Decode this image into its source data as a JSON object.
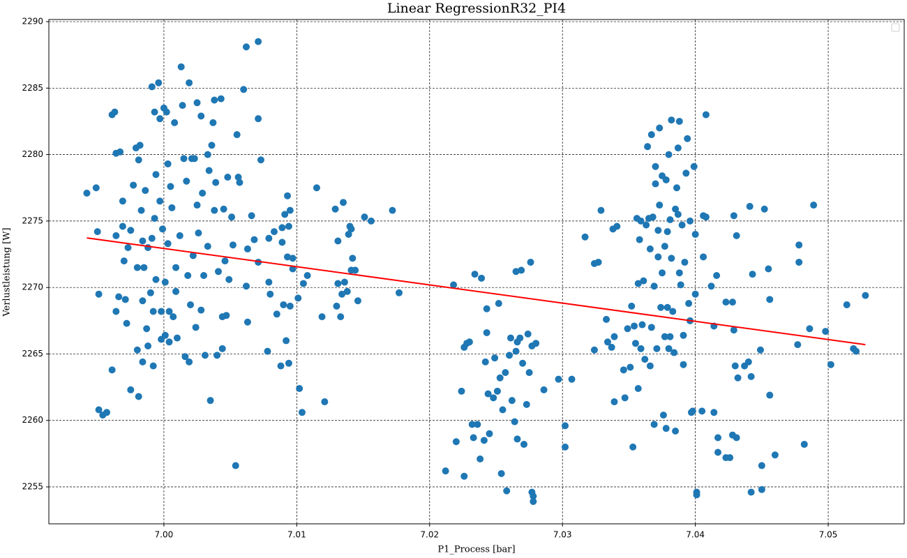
{
  "chart_data": {
    "type": "scatter",
    "title": "Linear RegressionR32_PI4",
    "x_label": "P1_Process [bar]",
    "y_label": "Verlustleistung [W]",
    "xlim": [
      6.99134,
      7.05572
    ],
    "ylim": [
      2252.22,
      2290.16
    ],
    "xticks": [
      {
        "value": 7.0,
        "label": "7.00"
      },
      7.01,
      7.02,
      7.03,
      7.04,
      7.05
    ],
    "yticks": [
      2255,
      2260,
      2265,
      2270,
      2275,
      2280,
      2285,
      2290
    ],
    "grid": true,
    "legend": "upper right",
    "series": [
      {
        "type": "scatter",
        "color": "#1f77b4",
        "x": [
          6.9942,
          6.9949,
          6.995,
          6.9951,
          6.9951,
          6.9954,
          6.9957,
          6.9961,
          6.9961,
          6.9963,
          6.9964,
          6.9967,
          6.9964,
          6.9964,
          6.9966,
          6.9969,
          6.9969,
          6.997,
          6.9971,
          6.9972,
          6.9973,
          6.9975,
          6.9975,
          6.9977,
          6.9979,
          6.998,
          6.998,
          6.9981,
          6.9981,
          6.9982,
          6.9983,
          6.9984,
          6.9984,
          6.9984,
          6.9985,
          6.9986,
          6.9987,
          6.9988,
          6.9988,
          6.999,
          6.9991,
          6.9991,
          6.9992,
          6.9992,
          6.9993,
          6.9993,
          6.9994,
          6.9994,
          6.9996,
          6.9997,
          6.9997,
          6.9998,
          6.9998,
          6.9999,
          7.0,
          7.0001,
          7.0001,
          7.0002,
          7.0003,
          7.0003,
          7.0004,
          7.0004,
          7.0005,
          7.0006,
          7.0007,
          7.0008,
          7.0009,
          7.0009,
          7.001,
          7.0012,
          7.0013,
          7.0014,
          7.0015,
          7.0016,
          7.0017,
          7.0018,
          7.0019,
          7.0019,
          7.002,
          7.0021,
          7.0022,
          7.0023,
          7.0024,
          7.0025,
          7.0025,
          7.0026,
          7.0028,
          7.0028,
          7.0029,
          7.003,
          7.0031,
          7.0033,
          7.0033,
          7.0034,
          7.0035,
          7.0036,
          7.0037,
          7.0038,
          7.0038,
          7.0039,
          7.004,
          7.0041,
          7.0043,
          7.0044,
          7.0044,
          7.0045,
          7.0046,
          7.0047,
          7.0048,
          7.0049,
          7.0051,
          7.0052,
          7.0054,
          7.0055,
          7.0056,
          7.0057,
          7.006,
          7.0062,
          7.0062,
          7.0063,
          7.0063,
          7.0066,
          7.0068,
          7.0071,
          7.0071,
          7.0071,
          7.0073,
          7.0078,
          7.0079,
          7.0079,
          7.008,
          7.0083,
          7.0085,
          7.0088,
          7.0089,
          7.0089,
          7.009,
          7.0091,
          7.0092,
          7.0093,
          7.0093,
          7.0094,
          7.0094,
          7.0095,
          7.0095,
          7.0097,
          7.0097,
          7.0101,
          7.0102,
          7.0104,
          7.0105,
          7.0108,
          7.0115,
          7.0119,
          7.0121,
          7.0129,
          7.013,
          7.0131,
          7.0131,
          7.0133,
          7.0134,
          7.0135,
          7.0136,
          7.0138,
          7.0139,
          7.014,
          7.0141,
          7.0141,
          7.0142,
          7.0144,
          7.0146,
          7.0151,
          7.0156,
          7.0172,
          7.0177,
          7.0212,
          7.0218,
          7.022,
          7.0224,
          7.0226,
          7.0226,
          7.0228,
          7.023,
          7.0232,
          7.0233,
          7.0234,
          7.0236,
          7.0238,
          7.0239,
          7.0241,
          7.0242,
          7.0243,
          7.0243,
          7.0244,
          7.0245,
          7.0248,
          7.0249,
          7.0251,
          7.0252,
          7.0253,
          7.0254,
          7.0255,
          7.0257,
          7.0258,
          7.026,
          7.0261,
          7.0262,
          7.0264,
          7.0265,
          7.0265,
          7.0266,
          7.0266,
          7.0268,
          7.0269,
          7.027,
          7.0271,
          7.0273,
          7.0274,
          7.0275,
          7.0276,
          7.0277,
          7.0277,
          7.0278,
          7.0278,
          7.028,
          7.0286,
          7.0297,
          7.0302,
          7.0302,
          7.0307,
          7.0317,
          7.0324,
          7.0324,
          7.0327,
          7.0329,
          7.0333,
          7.0334,
          7.0337,
          7.0338,
          7.0339,
          7.0339,
          7.0341,
          7.0346,
          7.0347,
          7.0349,
          7.0351,
          7.0352,
          7.0353,
          7.0354,
          7.0355,
          7.0356,
          7.0357,
          7.0357,
          7.0358,
          7.0359,
          7.0359,
          7.036,
          7.0361,
          7.0362,
          7.0363,
          7.0364,
          7.0365,
          7.0366,
          7.0366,
          7.0367,
          7.0367,
          7.0368,
          7.0369,
          7.0369,
          7.037,
          7.037,
          7.0371,
          7.0372,
          7.0372,
          7.0373,
          7.0373,
          7.0374,
          7.0375,
          7.0375,
          7.0376,
          7.0377,
          7.0377,
          7.0378,
          7.0378,
          7.0379,
          7.0379,
          7.038,
          7.038,
          7.0381,
          7.0381,
          7.0382,
          7.0382,
          7.0383,
          7.0384,
          7.0385,
          7.0385,
          7.0386,
          7.0387,
          7.0387,
          7.0388,
          7.0388,
          7.0389,
          7.039,
          7.0391,
          7.0391,
          7.0392,
          7.0393,
          7.0394,
          7.0395,
          7.0396,
          7.0396,
          7.0397,
          7.0398,
          7.0399,
          7.04,
          7.04,
          7.0401,
          7.0401,
          7.0405,
          7.0406,
          7.0406,
          7.0408,
          7.0408,
          7.0412,
          7.0414,
          7.0414,
          7.0416,
          7.0417,
          7.0417,
          7.0423,
          7.0423,
          7.0426,
          7.0428,
          7.0428,
          7.0429,
          7.0429,
          7.043,
          7.0431,
          7.0431,
          7.0432,
          7.0437,
          7.044,
          7.0441,
          7.0442,
          7.0442,
          7.0443,
          7.0449,
          7.045,
          7.045,
          7.0452,
          7.0455,
          7.0456,
          7.0456,
          7.046,
          7.0482,
          7.0477,
          7.0478,
          7.0478,
          7.0486,
          7.0489,
          7.0498,
          7.0502,
          7.0514,
          7.0519,
          7.0521,
          7.0528
        ],
        "values": [
          2277.1,
          2277.5,
          2274.2,
          2269.5,
          2260.8,
          2260.4,
          2260.6,
          2263.8,
          2283.0,
          2283.2,
          2280.1,
          2280.2,
          2273.9,
          2268.2,
          2269.3,
          2276.5,
          2274.6,
          2272.0,
          2269.1,
          2267.3,
          2273.0,
          2262.3,
          2274.3,
          2277.7,
          2280.5,
          2271.5,
          2265.3,
          2279.6,
          2261.8,
          2280.7,
          2275.8,
          2273.5,
          2264.4,
          2269.0,
          2271.5,
          2277.3,
          2266.9,
          2273.0,
          2265.6,
          2269.6,
          2285.1,
          2273.7,
          2268.2,
          2264.1,
          2283.2,
          2275.2,
          2278.5,
          2270.6,
          2285.4,
          2282.7,
          2276.5,
          2266.1,
          2268.2,
          2274.4,
          2283.5,
          2266.4,
          2270.4,
          2283.2,
          2279.3,
          2273.3,
          2265.9,
          2268.2,
          2277.6,
          2276.0,
          2267.8,
          2282.4,
          2271.5,
          2269.7,
          2266.2,
          2273.9,
          2286.6,
          2283.7,
          2279.7,
          2264.8,
          2278.0,
          2270.9,
          2285.4,
          2264.4,
          2268.7,
          2279.7,
          2272.4,
          2279.7,
          2267.0,
          2283.9,
          2276.2,
          2274.1,
          2268.3,
          2282.9,
          2277.1,
          2270.9,
          2264.9,
          2280.0,
          2273.1,
          2278.8,
          2261.5,
          2280.7,
          2282.4,
          2275.8,
          2284.1,
          2277.9,
          2264.9,
          2271.2,
          2284.2,
          2267.8,
          2265.4,
          2275.9,
          2272.0,
          2267.9,
          2278.3,
          2270.6,
          2275.3,
          2273.2,
          2256.6,
          2281.5,
          2278.3,
          2277.9,
          2284.9,
          2288.1,
          2270.1,
          2267.4,
          2272.9,
          2275.4,
          2273.6,
          2282.7,
          2288.5,
          2271.9,
          2279.6,
          2265.2,
          2270.4,
          2273.7,
          2269.5,
          2274.2,
          2268.0,
          2264.1,
          2274.5,
          2273.4,
          2268.7,
          2275.5,
          2266.0,
          2276.9,
          2272.3,
          2274.6,
          2264.3,
          2268.6,
          2275.8,
          2272.2,
          2271.4,
          2269.2,
          2262.4,
          2260.6,
          2270.3,
          2270.9,
          2277.5,
          2267.8,
          2261.4,
          2275.9,
          2268.6,
          2273.5,
          2270.3,
          2267.8,
          2269.5,
          2276.4,
          2270.4,
          2269.7,
          2274.0,
          2274.6,
          2274.4,
          2271.3,
          2272.2,
          2271.3,
          2269.0,
          2275.3,
          2275.0,
          2275.8,
          2269.6,
          2256.2,
          2270.2,
          2258.4,
          2262.2,
          2265.5,
          2255.8,
          2265.8,
          2265.9,
          2259.7,
          2258.7,
          2271.0,
          2259.7,
          2257.1,
          2270.7,
          2258.5,
          2264.4,
          2266.6,
          2268.4,
          2262.0,
          2259.0,
          2261.7,
          2264.7,
          2262.2,
          2268.8,
          2263.2,
          2256.0,
          2260.8,
          2263.6,
          2254.7,
          2264.9,
          2266.2,
          2261.5,
          2259.9,
          2271.2,
          2265.2,
          2258.6,
          2265.9,
          2266.2,
          2271.3,
          2264.3,
          2258.2,
          2261.2,
          2266.5,
          2263.6,
          2271.9,
          2254.6,
          2265.6,
          2254.3,
          2253.9,
          2265.8,
          2262.3,
          2263.1,
          2259.6,
          2258.0,
          2263.1,
          2273.8,
          2265.3,
          2271.8,
          2271.9,
          2275.8,
          2267.6,
          2265.9,
          2265.5,
          2274.4,
          2261.4,
          2266.3,
          2274.6,
          2263.8,
          2261.7,
          2266.9,
          2264.0,
          2268.6,
          2258.0,
          2267.1,
          2265.8,
          2275.2,
          2270.3,
          2262.4,
          2273.6,
          2265.4,
          2275.0,
          2267.2,
          2270.5,
          2264.6,
          2274.7,
          2280.6,
          2275.2,
          2272.9,
          2264.1,
          2281.5,
          2267.0,
          2275.3,
          2270.1,
          2259.7,
          2277.8,
          2279.1,
          2265.4,
          2274.3,
          2272.3,
          2276.2,
          2282.0,
          2268.5,
          2278.4,
          2271.1,
          2260.4,
          2266.3,
          2273.1,
          2278.1,
          2259.4,
          2274.2,
          2268.5,
          2280.0,
          2265.4,
          2275.1,
          2266.3,
          2282.6,
          2272.2,
          2268.2,
          2265.1,
          2259.2,
          2275.9,
          2277.5,
          2280.5,
          2275.5,
          2271.1,
          2282.5,
          2270.2,
          2274.7,
          2264.2,
          2266.4,
          2271.9,
          2278.6,
          2281.2,
          2268.8,
          2267.5,
          2275.0,
          2260.6,
          2260.7,
          2279.1,
          2274.0,
          2269.5,
          2254.6,
          2254.4,
          2260.7,
          2275.4,
          2272.3,
          2283.0,
          2275.3,
          2270.1,
          2260.6,
          2267.1,
          2270.9,
          2258.7,
          2257.6,
          2268.9,
          2257.2,
          2257.2,
          2258.9,
          2268.9,
          2275.4,
          2266.8,
          2264.1,
          2258.7,
          2273.9,
          2263.2,
          2264.1,
          2264.4,
          2276.1,
          2263.3,
          2254.6,
          2271.0,
          2265.3,
          2256.6,
          2254.8,
          2275.9,
          2271.4,
          2269.1,
          2261.9,
          2257.4,
          2258.2,
          2265.7,
          2273.2,
          2271.9,
          2266.9,
          2276.2,
          2266.7,
          2264.2,
          2268.7,
          2265.4,
          2265.2,
          2269.4
        ]
      },
      {
        "type": "line",
        "color": "#ff0000",
        "x": [
          6.9942,
          7.0528
        ],
        "values": [
          2273.73,
          2265.7
        ]
      }
    ]
  }
}
